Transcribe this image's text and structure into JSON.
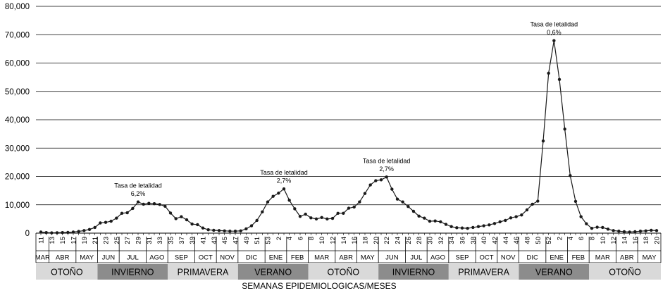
{
  "chart_data": {
    "type": "line",
    "xlabel": "SEMANAS EPIDEMIOLOGICAS/MESES",
    "ylim": [
      0,
      80000
    ],
    "yticks": [
      "0",
      "10,000",
      "20,000",
      "30,000",
      "40,000",
      "50,000",
      "60,000",
      "70,000",
      "80,000"
    ],
    "grid": true,
    "colors": {
      "line": "#1a1a1a",
      "grid": "#000000",
      "season_light": "#d9d9d9",
      "season_dark": "#8c8c8c"
    },
    "series": [
      {
        "values": [
          400,
          200,
          100,
          150,
          200,
          250,
          400,
          600,
          900,
          1300,
          2000,
          3600,
          3800,
          4200,
          5300,
          7000,
          7200,
          8700,
          11000,
          10200,
          10500,
          10400,
          10100,
          9500,
          7100,
          5100,
          5800,
          4700,
          3200,
          3000,
          1800,
          1200,
          1000,
          900,
          800,
          700,
          700,
          800,
          1500,
          2600,
          4500,
          7500,
          11000,
          13000,
          14100,
          15600,
          11600,
          8600,
          5900,
          6700,
          5400,
          5000,
          5500,
          5000,
          5200,
          7000,
          7000,
          8800,
          9200,
          11000,
          14000,
          17000,
          18500,
          18800,
          19800,
          15500,
          12000,
          11000,
          9400,
          7700,
          6000,
          5300,
          4200,
          4300,
          4000,
          3100,
          2300,
          1900,
          1800,
          1700,
          2000,
          2300,
          2600,
          2900,
          3400,
          4000,
          4500,
          5400,
          5800,
          6400,
          8200,
          10200,
          11300,
          32500,
          56400,
          67900,
          54200,
          36700,
          20300,
          11200,
          5800,
          3300,
          1700,
          2100,
          2000,
          1400,
          900,
          700,
          500,
          400,
          500,
          700,
          800,
          1000,
          900
        ]
      }
    ],
    "annotations": [
      {
        "label": "Tasa de letalidad",
        "value": "6,2%",
        "point_index": 18
      },
      {
        "label": "Tasa de letalidad",
        "value": "2,7%",
        "point_index": 45
      },
      {
        "label": "Tasa de letalidad",
        "value": "2,7%",
        "point_index": 64
      },
      {
        "label": "Tasa de letalidad",
        "value": "0,6%",
        "point_index": 95
      }
    ],
    "week_ticks": [
      {
        "label": "11",
        "index": 0
      },
      {
        "label": "13",
        "index": 2
      },
      {
        "label": "15",
        "index": 4
      },
      {
        "label": "17",
        "index": 6
      },
      {
        "label": "19",
        "index": 8
      },
      {
        "label": "21",
        "index": 10
      },
      {
        "label": "23",
        "index": 12
      },
      {
        "label": "25",
        "index": 14
      },
      {
        "label": "27",
        "index": 16
      },
      {
        "label": "29",
        "index": 18
      },
      {
        "label": "31",
        "index": 20
      },
      {
        "label": "33",
        "index": 22
      },
      {
        "label": "35",
        "index": 24
      },
      {
        "label": "37",
        "index": 26
      },
      {
        "label": "39",
        "index": 28
      },
      {
        "label": "41",
        "index": 30
      },
      {
        "label": "43",
        "index": 32
      },
      {
        "label": "45",
        "index": 34
      },
      {
        "label": "47",
        "index": 36
      },
      {
        "label": "49",
        "index": 38
      },
      {
        "label": "51",
        "index": 40
      },
      {
        "label": "53",
        "index": 42
      },
      {
        "label": "2",
        "index": 44
      },
      {
        "label": "4",
        "index": 46
      },
      {
        "label": "6",
        "index": 48
      },
      {
        "label": "8",
        "index": 50
      },
      {
        "label": "10",
        "index": 52
      },
      {
        "label": "12",
        "index": 54
      },
      {
        "label": "14",
        "index": 56
      },
      {
        "label": "16",
        "index": 58
      },
      {
        "label": "18",
        "index": 60
      },
      {
        "label": "20",
        "index": 62
      },
      {
        "label": "22",
        "index": 64
      },
      {
        "label": "24",
        "index": 66
      },
      {
        "label": "26",
        "index": 68
      },
      {
        "label": "28",
        "index": 70
      },
      {
        "label": "30",
        "index": 72
      },
      {
        "label": "32",
        "index": 74
      },
      {
        "label": "34",
        "index": 76
      },
      {
        "label": "36",
        "index": 78
      },
      {
        "label": "38",
        "index": 80
      },
      {
        "label": "40",
        "index": 82
      },
      {
        "label": "42",
        "index": 84
      },
      {
        "label": "44",
        "index": 86
      },
      {
        "label": "46",
        "index": 88
      },
      {
        "label": "48",
        "index": 90
      },
      {
        "label": "50",
        "index": 92
      },
      {
        "label": "52",
        "index": 94
      },
      {
        "label": "2",
        "index": 96
      },
      {
        "label": "4",
        "index": 98
      },
      {
        "label": "6",
        "index": 100
      },
      {
        "label": "8",
        "index": 102
      },
      {
        "label": "10",
        "index": 104
      },
      {
        "label": "12",
        "index": 106
      },
      {
        "label": "14",
        "index": 108
      },
      {
        "label": "16",
        "index": 110
      },
      {
        "label": "18",
        "index": 112
      },
      {
        "label": "20",
        "index": 114
      }
    ],
    "months": [
      {
        "label": "MAR",
        "start": 0,
        "end": 2
      },
      {
        "label": "ABR",
        "start": 2,
        "end": 7
      },
      {
        "label": "MAY",
        "start": 7,
        "end": 11
      },
      {
        "label": "JUN",
        "start": 11,
        "end": 15
      },
      {
        "label": "JUL",
        "start": 15,
        "end": 20
      },
      {
        "label": "AGO",
        "start": 20,
        "end": 24
      },
      {
        "label": "SEP",
        "start": 24,
        "end": 29
      },
      {
        "label": "OCT",
        "start": 29,
        "end": 33
      },
      {
        "label": "NOV",
        "start": 33,
        "end": 37
      },
      {
        "label": "DIC",
        "start": 37,
        "end": 42
      },
      {
        "label": "ENE",
        "start": 42,
        "end": 46
      },
      {
        "label": "FEB",
        "start": 46,
        "end": 50
      },
      {
        "label": "MAR",
        "start": 50,
        "end": 55
      },
      {
        "label": "ABR",
        "start": 55,
        "end": 59
      },
      {
        "label": "MAY",
        "start": 59,
        "end": 63
      },
      {
        "label": "JUN",
        "start": 63,
        "end": 68
      },
      {
        "label": "JUL",
        "start": 68,
        "end": 72
      },
      {
        "label": "AGO",
        "start": 72,
        "end": 76
      },
      {
        "label": "SEP",
        "start": 76,
        "end": 81
      },
      {
        "label": "OCT",
        "start": 81,
        "end": 85
      },
      {
        "label": "NOV",
        "start": 85,
        "end": 89
      },
      {
        "label": "DIC",
        "start": 89,
        "end": 94
      },
      {
        "label": "ENE",
        "start": 94,
        "end": 98
      },
      {
        "label": "FEB",
        "start": 98,
        "end": 102
      },
      {
        "label": "MAR",
        "start": 102,
        "end": 107
      },
      {
        "label": "ABR",
        "start": 107,
        "end": 111
      },
      {
        "label": "MAY",
        "start": 111,
        "end": 115
      }
    ],
    "seasons": [
      {
        "label": "OTOÑO",
        "start": 0,
        "end": 11,
        "shade": "light"
      },
      {
        "label": "INVIERNO",
        "start": 11,
        "end": 24,
        "shade": "dark"
      },
      {
        "label": "PRIMAVERA",
        "start": 24,
        "end": 37,
        "shade": "light"
      },
      {
        "label": "VERANO",
        "start": 37,
        "end": 50,
        "shade": "dark"
      },
      {
        "label": "OTOÑO",
        "start": 50,
        "end": 63,
        "shade": "light"
      },
      {
        "label": "INVIERNO",
        "start": 63,
        "end": 76,
        "shade": "dark"
      },
      {
        "label": "PRIMAVERA",
        "start": 76,
        "end": 89,
        "shade": "light"
      },
      {
        "label": "VERANO",
        "start": 89,
        "end": 102,
        "shade": "dark"
      },
      {
        "label": "OTOÑO",
        "start": 102,
        "end": 115,
        "shade": "light"
      }
    ]
  }
}
